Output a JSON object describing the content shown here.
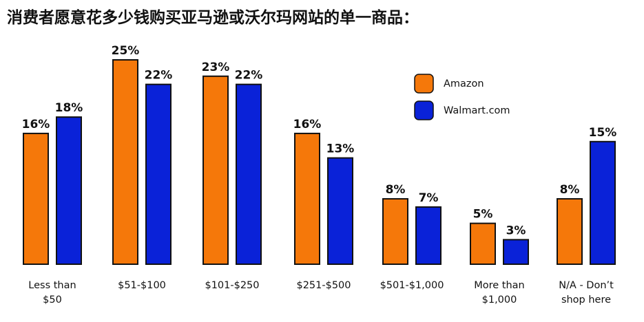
{
  "chart_data": {
    "type": "bar",
    "title": "消费者愿意花多少钱购买亚马逊或沃尔玛网站的单一商品：",
    "categories": [
      [
        "Less than",
        "$50"
      ],
      [
        "$51-$100"
      ],
      [
        "$101-$250"
      ],
      [
        "$251-$500"
      ],
      [
        "$501-$1,000"
      ],
      [
        "More than",
        "$1,000"
      ],
      [
        "N/A - Don’t",
        "shop here"
      ]
    ],
    "series": [
      {
        "name": "Amazon",
        "color": "#f5780a",
        "values": [
          16,
          25,
          23,
          16,
          8,
          5,
          8
        ]
      },
      {
        "name": "Walmart.com",
        "color": "#0a22d8",
        "values": [
          18,
          22,
          22,
          13,
          7,
          3,
          15
        ]
      }
    ],
    "value_suffix": "%",
    "xlabel": "",
    "ylabel": "",
    "ylim": [
      0,
      25
    ],
    "grid": false,
    "legend": "top-right"
  }
}
